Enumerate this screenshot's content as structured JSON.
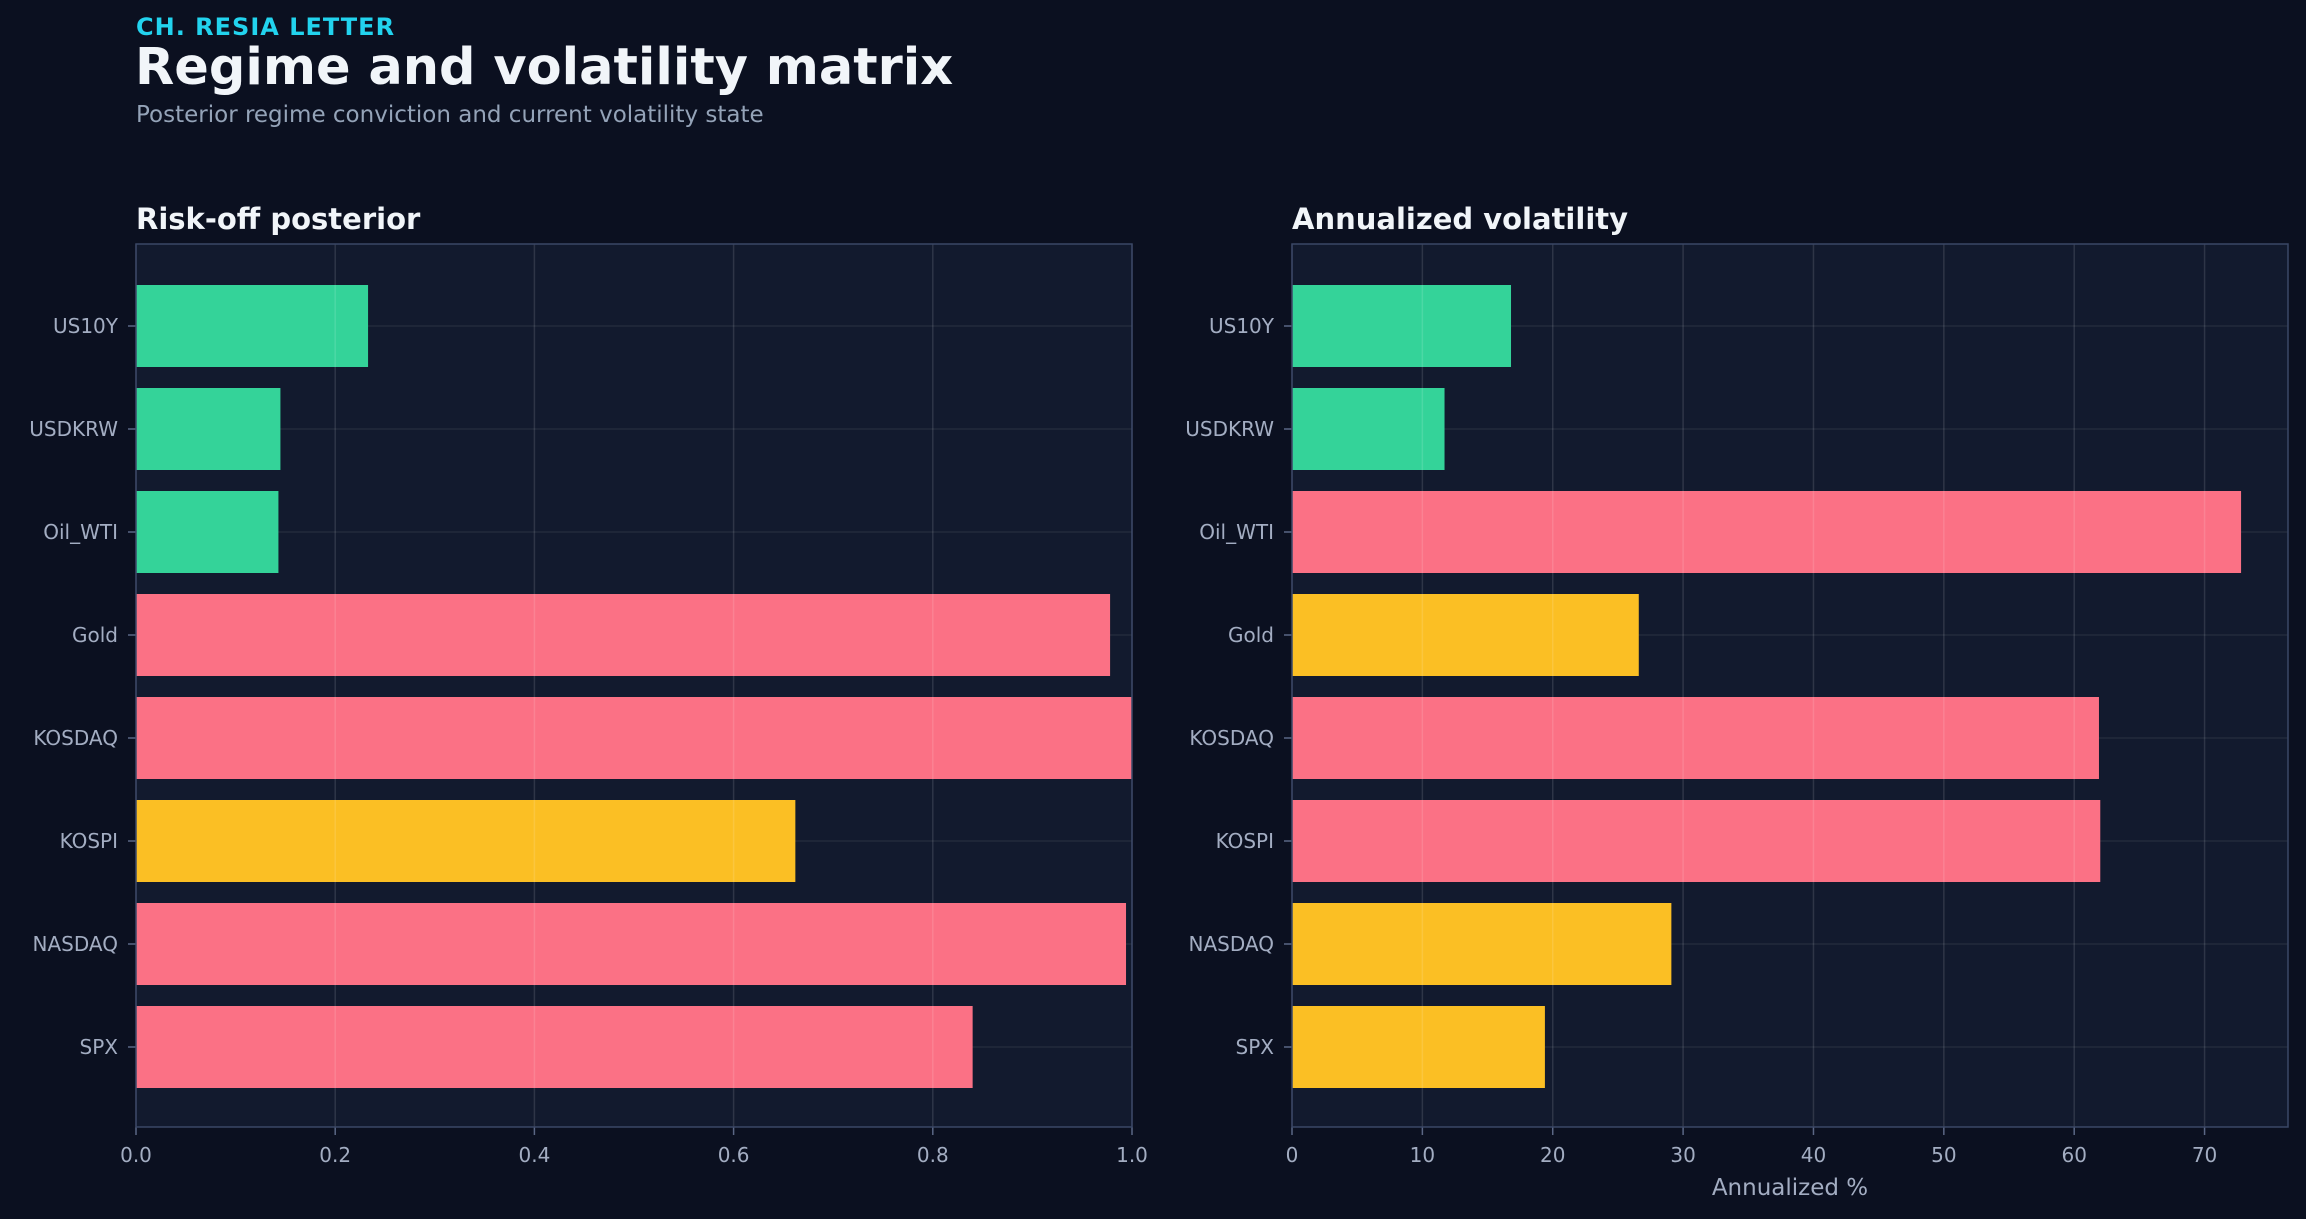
{
  "header": {
    "kicker": "CH. RESIA LETTER",
    "title": "Regime and volatility matrix",
    "subtitle": "Posterior regime conviction and current volatility state"
  },
  "colors": {
    "background": "#0b1020",
    "panel": "#121a2e",
    "risk_off": "#fb7185",
    "neutral": "#fbbf24",
    "risk_on": "#34d399",
    "kicker": "#22d3ee"
  },
  "chart_data": [
    {
      "type": "bar",
      "orientation": "horizontal",
      "title": "Risk-off posterior",
      "xlabel": "",
      "categories": [
        "US10Y",
        "USDKRW",
        "Oil_WTI",
        "Gold",
        "KOSDAQ",
        "KOSPI",
        "NASDAQ",
        "SPX"
      ],
      "values": [
        0.233,
        0.145,
        0.143,
        0.978,
        1.0,
        0.662,
        0.994,
        0.84
      ],
      "bar_colors": [
        "risk_on",
        "risk_on",
        "risk_on",
        "risk_off",
        "risk_off",
        "neutral",
        "risk_off",
        "risk_off"
      ],
      "xlim": [
        0,
        1.0
      ],
      "xticks": [
        "0.0",
        "0.2",
        "0.4",
        "0.6",
        "0.8",
        "1.0"
      ],
      "xtick_values": [
        0,
        0.2,
        0.4,
        0.6,
        0.8,
        1.0
      ],
      "grid": true
    },
    {
      "type": "bar",
      "orientation": "horizontal",
      "title": "Annualized volatility",
      "xlabel": "Annualized %",
      "categories": [
        "US10Y",
        "USDKRW",
        "Oil_WTI",
        "Gold",
        "KOSDAQ",
        "KOSPI",
        "NASDAQ",
        "SPX"
      ],
      "values": [
        16.8,
        11.7,
        72.8,
        26.6,
        61.9,
        62.0,
        29.1,
        19.4
      ],
      "bar_colors": [
        "risk_on",
        "risk_on",
        "risk_off",
        "neutral",
        "risk_off",
        "risk_off",
        "neutral",
        "neutral"
      ],
      "xlim": [
        0,
        76.4
      ],
      "xticks": [
        "0",
        "10",
        "20",
        "30",
        "40",
        "50",
        "60",
        "70"
      ],
      "xtick_values": [
        0,
        10,
        20,
        30,
        40,
        50,
        60,
        70
      ],
      "grid": true
    }
  ]
}
